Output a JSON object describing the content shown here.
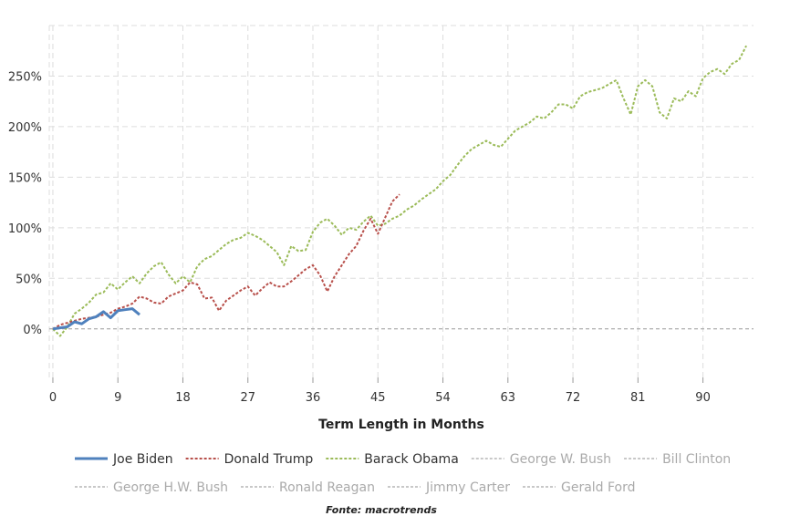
{
  "chart_data": {
    "type": "line",
    "xlabel": "Term Length in Months",
    "x_ticks": [
      0,
      9,
      18,
      27,
      36,
      45,
      54,
      63,
      72,
      81,
      90
    ],
    "y_ticks": [
      0,
      50,
      100,
      150,
      200,
      250
    ],
    "y_tick_suffix": "%",
    "xlim": [
      -0.5,
      97
    ],
    "ylim": [
      -48,
      300
    ],
    "grid": true,
    "legend_position": "bottom",
    "source": "Fonte: macrotrends",
    "series": [
      {
        "name": "Joe Biden",
        "color": "#4f81bd",
        "style": "solid",
        "active": true,
        "x": [
          0,
          1,
          2,
          3,
          4,
          5,
          6,
          7,
          8,
          9,
          10,
          11,
          12
        ],
        "y": [
          0,
          1,
          2,
          7,
          5,
          10,
          12,
          17,
          11,
          18,
          19,
          20,
          14
        ]
      },
      {
        "name": "Donald Trump",
        "color": "#b8504b",
        "style": "dotted",
        "active": true,
        "x": [
          0,
          1,
          2,
          3,
          4,
          5,
          6,
          7,
          8,
          9,
          10,
          11,
          12,
          13,
          14,
          15,
          16,
          17,
          18,
          19,
          20,
          21,
          22,
          23,
          24,
          25,
          26,
          27,
          28,
          29,
          30,
          31,
          32,
          33,
          34,
          35,
          36,
          37,
          38,
          39,
          40,
          41,
          42,
          43,
          44,
          45,
          46,
          47,
          48
        ],
        "y": [
          0,
          4,
          6,
          8,
          10,
          11,
          12,
          14,
          16,
          20,
          22,
          25,
          32,
          30,
          26,
          25,
          32,
          35,
          38,
          46,
          44,
          30,
          31,
          18,
          28,
          33,
          38,
          42,
          33,
          40,
          46,
          42,
          42,
          47,
          53,
          59,
          63,
          53,
          37,
          52,
          63,
          74,
          82,
          97,
          109,
          94,
          110,
          126,
          133
        ]
      },
      {
        "name": "Barack Obama",
        "color": "#9bbb59",
        "style": "dotted",
        "active": true,
        "x": [
          0,
          1,
          2,
          3,
          4,
          5,
          6,
          7,
          8,
          9,
          10,
          11,
          12,
          13,
          14,
          15,
          16,
          17,
          18,
          19,
          20,
          21,
          22,
          23,
          24,
          25,
          26,
          27,
          28,
          29,
          30,
          31,
          32,
          33,
          34,
          35,
          36,
          37,
          38,
          39,
          40,
          41,
          42,
          43,
          44,
          45,
          46,
          47,
          48,
          49,
          50,
          51,
          52,
          53,
          54,
          55,
          56,
          57,
          58,
          59,
          60,
          61,
          62,
          63,
          64,
          65,
          66,
          67,
          68,
          69,
          70,
          71,
          72,
          73,
          74,
          75,
          76,
          77,
          78,
          79,
          80,
          81,
          82,
          83,
          84,
          85,
          86,
          87,
          88,
          89,
          90,
          91,
          92,
          93,
          94,
          95,
          96
        ],
        "y": [
          0,
          -7,
          2,
          15,
          20,
          26,
          34,
          36,
          45,
          39,
          46,
          52,
          45,
          55,
          62,
          66,
          54,
          45,
          52,
          46,
          62,
          69,
          72,
          78,
          84,
          88,
          90,
          95,
          92,
          88,
          82,
          76,
          63,
          82,
          77,
          78,
          96,
          105,
          109,
          102,
          93,
          100,
          98,
          106,
          112,
          102,
          104,
          109,
          112,
          118,
          122,
          128,
          133,
          138,
          146,
          152,
          162,
          171,
          178,
          182,
          186,
          182,
          180,
          188,
          196,
          200,
          204,
          210,
          208,
          214,
          222,
          222,
          218,
          230,
          234,
          236,
          238,
          242,
          246,
          228,
          212,
          240,
          246,
          240,
          214,
          208,
          228,
          225,
          235,
          230,
          248,
          254,
          257,
          252,
          262,
          266,
          280
        ]
      },
      {
        "name": "George W. Bush",
        "color": "#c8c8c8",
        "style": "dotted",
        "active": false,
        "x": [],
        "y": []
      },
      {
        "name": "Bill Clinton",
        "color": "#c8c8c8",
        "style": "dotted",
        "active": false,
        "x": [],
        "y": []
      },
      {
        "name": "George H.W. Bush",
        "color": "#c8c8c8",
        "style": "dotted",
        "active": false,
        "x": [],
        "y": []
      },
      {
        "name": "Ronald Reagan",
        "color": "#c8c8c8",
        "style": "dotted",
        "active": false,
        "x": [],
        "y": []
      },
      {
        "name": "Jimmy Carter",
        "color": "#c8c8c8",
        "style": "dotted",
        "active": false,
        "x": [],
        "y": []
      },
      {
        "name": "Gerald Ford",
        "color": "#c8c8c8",
        "style": "dotted",
        "active": false,
        "x": [],
        "y": []
      }
    ]
  }
}
